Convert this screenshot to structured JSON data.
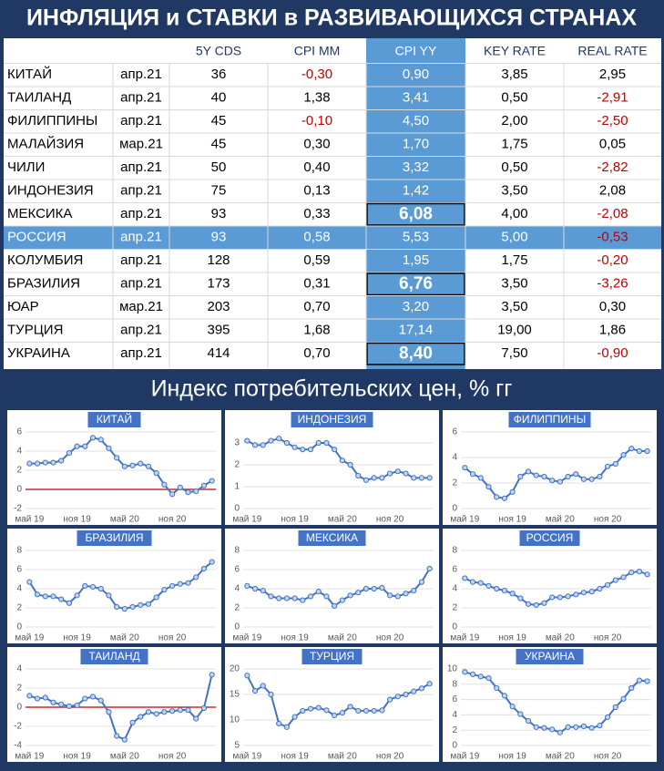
{
  "header": {
    "title": "ИНФЛЯЦИЯ и СТАВКИ в РАЗВИВАЮЩИХСЯ СТРАНАХ"
  },
  "table": {
    "columns": [
      "5Y CDS",
      "CPI MM",
      "CPI YY",
      "KEY RATE",
      "REAL RATE"
    ],
    "rows": [
      {
        "cells": [
          "КИТАЙ",
          "апр.21",
          "36",
          "-0,30",
          "0,90",
          "3,85",
          "2,95"
        ]
      },
      {
        "cells": [
          "ТАИЛАНД",
          "апр.21",
          "40",
          "1,38",
          "3,41",
          "0,50",
          "-2,91"
        ]
      },
      {
        "cells": [
          "ФИЛИППИНЫ",
          "апр.21",
          "45",
          "-0,10",
          "4,50",
          "2,00",
          "-2,50"
        ]
      },
      {
        "cells": [
          "МАЛАЙЗИЯ",
          "мар.21",
          "45",
          "0,30",
          "1,70",
          "1,75",
          "0,05"
        ]
      },
      {
        "cells": [
          "ЧИЛИ",
          "апр.21",
          "50",
          "0,40",
          "3,32",
          "0,50",
          "-2,82"
        ]
      },
      {
        "cells": [
          "ИНДОНЕЗИЯ",
          "апр.21",
          "75",
          "0,13",
          "1,42",
          "3,50",
          "2,08"
        ]
      },
      {
        "cells": [
          "МЕКСИКА",
          "апр.21",
          "93",
          "0,33",
          "6,08",
          "4,00",
          "-2,08"
        ],
        "boxed": true
      },
      {
        "cells": [
          "РОССИЯ",
          "апр.21",
          "93",
          "0,58",
          "5,53",
          "5,00",
          "-0,53"
        ],
        "highlight": true
      },
      {
        "cells": [
          "КОЛУМБИЯ",
          "апр.21",
          "128",
          "0,59",
          "1,95",
          "1,75",
          "-0,20"
        ]
      },
      {
        "cells": [
          "БРАЗИЛИЯ",
          "апр.21",
          "173",
          "0,31",
          "6,76",
          "3,50",
          "-3,26"
        ],
        "boxed": true
      },
      {
        "cells": [
          "ЮАР",
          "мар.21",
          "203",
          "0,70",
          "3,20",
          "3,50",
          "0,30"
        ]
      },
      {
        "cells": [
          "ТУРЦИЯ",
          "апр.21",
          "395",
          "1,68",
          "17,14",
          "19,00",
          "1,86"
        ]
      },
      {
        "cells": [
          "УКРАИНА",
          "апр.21",
          "414",
          "0,70",
          "8,40",
          "7,50",
          "-0,90"
        ],
        "boxed": true
      }
    ]
  },
  "section_title": "Индекс потребительских цен, % гг",
  "chart_data": [
    {
      "type": "line",
      "title": "КИТАЙ",
      "categories": [
        "май 19",
        null,
        null,
        null,
        null,
        null,
        "ноя 19",
        null,
        null,
        null,
        null,
        null,
        "май 20",
        null,
        null,
        null,
        null,
        null,
        "ноя 20",
        null,
        null,
        null,
        null,
        null
      ],
      "values": [
        2.7,
        2.7,
        2.8,
        2.8,
        3.0,
        3.8,
        4.5,
        4.5,
        5.4,
        5.2,
        4.3,
        3.3,
        2.4,
        2.5,
        2.7,
        2.4,
        1.7,
        0.5,
        -0.5,
        0.2,
        -0.3,
        -0.2,
        0.4,
        0.9
      ],
      "color": "#4472c4",
      "ylim": [
        -2,
        6
      ],
      "yticks": [
        -2,
        0,
        2,
        4,
        6
      ],
      "grid": true,
      "hline": 0,
      "hline_color": "#c00000"
    },
    {
      "type": "line",
      "title": "ИНДОНЕЗИЯ",
      "categories": [
        "май 19",
        null,
        null,
        null,
        null,
        null,
        "ноя 19",
        null,
        null,
        null,
        null,
        null,
        "май 20",
        null,
        null,
        null,
        null,
        null,
        "ноя 20",
        null,
        null,
        null,
        null,
        null
      ],
      "values": [
        3.1,
        2.9,
        2.9,
        3.1,
        3.2,
        3.0,
        2.8,
        2.7,
        2.7,
        3.0,
        3.0,
        2.7,
        2.2,
        2.0,
        1.5,
        1.3,
        1.4,
        1.4,
        1.6,
        1.7,
        1.6,
        1.4,
        1.4,
        1.4
      ],
      "color": "#4472c4",
      "ylim": [
        0,
        3.5
      ],
      "yticks": [
        0,
        1,
        2,
        3
      ],
      "grid": true
    },
    {
      "type": "line",
      "title": "ФИЛИППИНЫ",
      "categories": [
        "май 19",
        null,
        null,
        null,
        null,
        null,
        "ноя 19",
        null,
        null,
        null,
        null,
        null,
        "май 20",
        null,
        null,
        null,
        null,
        null,
        "ноя 20",
        null,
        null,
        null,
        null,
        null
      ],
      "values": [
        3.2,
        2.7,
        2.4,
        1.7,
        0.9,
        0.8,
        1.3,
        2.5,
        2.9,
        2.6,
        2.5,
        2.2,
        2.1,
        2.5,
        2.7,
        2.3,
        2.3,
        2.5,
        3.3,
        3.5,
        4.2,
        4.7,
        4.5,
        4.5
      ],
      "color": "#4472c4",
      "ylim": [
        0,
        6
      ],
      "yticks": [
        0,
        2,
        4,
        6
      ],
      "grid": true
    },
    {
      "type": "line",
      "title": "БРАЗИЛИЯ",
      "categories": [
        "май 19",
        null,
        null,
        null,
        null,
        null,
        "ноя 19",
        null,
        null,
        null,
        null,
        null,
        "май 20",
        null,
        null,
        null,
        null,
        null,
        "ноя 20",
        null,
        null,
        null,
        null,
        null
      ],
      "values": [
        4.7,
        3.4,
        3.2,
        3.2,
        2.9,
        2.5,
        3.3,
        4.3,
        4.2,
        4.0,
        3.3,
        2.1,
        1.9,
        2.1,
        2.3,
        2.4,
        3.1,
        3.9,
        4.3,
        4.5,
        4.6,
        5.2,
        6.1,
        6.8
      ],
      "color": "#4472c4",
      "ylim": [
        0,
        8
      ],
      "yticks": [
        0,
        2,
        4,
        6,
        8
      ],
      "grid": true
    },
    {
      "type": "line",
      "title": "МЕКСИКА",
      "categories": [
        "май 19",
        null,
        null,
        null,
        null,
        null,
        "ноя 19",
        null,
        null,
        null,
        null,
        null,
        "май 20",
        null,
        null,
        null,
        null,
        null,
        "ноя 20",
        null,
        null,
        null,
        null,
        null
      ],
      "values": [
        4.3,
        4.0,
        3.8,
        3.2,
        3.0,
        3.0,
        3.0,
        2.8,
        3.2,
        3.7,
        3.2,
        2.2,
        2.8,
        3.3,
        3.6,
        4.0,
        4.0,
        4.1,
        3.3,
        3.2,
        3.5,
        3.8,
        4.7,
        6.1
      ],
      "color": "#4472c4",
      "ylim": [
        0,
        8
      ],
      "yticks": [
        0,
        2,
        4,
        6,
        8
      ],
      "grid": true
    },
    {
      "type": "line",
      "title": "РОССИЯ",
      "categories": [
        "май 19",
        null,
        null,
        null,
        null,
        null,
        "ноя 19",
        null,
        null,
        null,
        null,
        null,
        "май 20",
        null,
        null,
        null,
        null,
        null,
        "ноя 20",
        null,
        null,
        null,
        null,
        null
      ],
      "values": [
        5.1,
        4.7,
        4.6,
        4.3,
        4.0,
        3.8,
        3.5,
        3.0,
        2.4,
        2.3,
        2.5,
        3.1,
        3.1,
        3.2,
        3.4,
        3.6,
        3.7,
        4.0,
        4.4,
        4.9,
        5.2,
        5.7,
        5.8,
        5.5
      ],
      "color": "#4472c4",
      "ylim": [
        0,
        8
      ],
      "yticks": [
        0,
        2,
        4,
        6,
        8
      ],
      "grid": true
    },
    {
      "type": "line",
      "title": "ТАИЛАНД",
      "categories": [
        "май 19",
        null,
        null,
        null,
        null,
        null,
        "ноя 19",
        null,
        null,
        null,
        null,
        null,
        "май 20",
        null,
        null,
        null,
        null,
        null,
        "ноя 20",
        null,
        null,
        null,
        null,
        null
      ],
      "values": [
        1.2,
        0.9,
        1.0,
        0.5,
        0.3,
        0.1,
        0.2,
        0.9,
        1.1,
        0.7,
        -0.5,
        -3.0,
        -3.4,
        -1.6,
        -1.0,
        -0.5,
        -0.7,
        -0.5,
        -0.4,
        -0.3,
        -0.3,
        -1.2,
        -0.1,
        3.4
      ],
      "color": "#4472c4",
      "ylim": [
        -4,
        4
      ],
      "yticks": [
        -4,
        -2,
        0,
        2,
        4
      ],
      "grid": true,
      "hline": 0,
      "hline_color": "#c00000"
    },
    {
      "type": "line",
      "title": "ТУРЦИЯ",
      "categories": [
        "май 19",
        null,
        null,
        null,
        null,
        null,
        "ноя 19",
        null,
        null,
        null,
        null,
        null,
        "май 20",
        null,
        null,
        null,
        null,
        null,
        "ноя 20",
        null,
        null,
        null,
        null,
        null
      ],
      "values": [
        18.7,
        15.7,
        16.7,
        15.0,
        9.3,
        8.6,
        10.6,
        11.8,
        12.2,
        12.4,
        11.9,
        10.9,
        11.4,
        12.6,
        11.8,
        11.8,
        11.8,
        11.9,
        14.0,
        14.6,
        15.0,
        15.6,
        16.2,
        17.1
      ],
      "color": "#4472c4",
      "ylim": [
        5,
        20
      ],
      "yticks": [
        5,
        10,
        15,
        20
      ],
      "grid": true
    },
    {
      "type": "line",
      "title": "УКРАИНА",
      "categories": [
        "май 19",
        null,
        null,
        null,
        null,
        null,
        "ноя 19",
        null,
        null,
        null,
        null,
        null,
        "май 20",
        null,
        null,
        null,
        null,
        null,
        "ноя 20",
        null,
        null,
        null,
        null,
        null
      ],
      "values": [
        9.6,
        9.3,
        9.0,
        8.8,
        7.5,
        6.5,
        5.1,
        4.1,
        3.2,
        2.4,
        2.3,
        2.1,
        1.7,
        2.4,
        2.4,
        2.5,
        2.3,
        2.6,
        3.7,
        5.0,
        6.1,
        7.5,
        8.5,
        8.4
      ],
      "color": "#4472c4",
      "ylim": [
        0,
        10
      ],
      "yticks": [
        0,
        2,
        4,
        6,
        8,
        10
      ],
      "grid": true
    }
  ]
}
